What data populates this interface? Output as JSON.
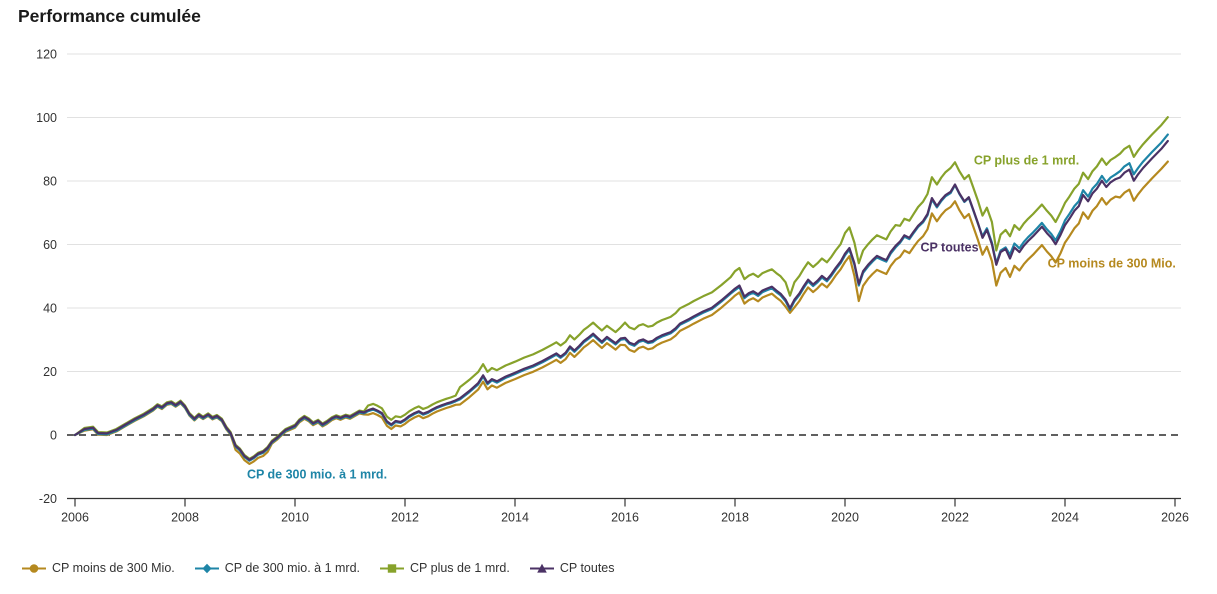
{
  "title": "Performance cumulée",
  "axis_color": "#333333",
  "grid_color": "#e1e1e1",
  "zero_line_color": "#000000",
  "chart_data": {
    "type": "line",
    "title": "Performance cumulée",
    "xlabel": "",
    "ylabel": "",
    "xlim": [
      2006,
      2026
    ],
    "ylim": [
      -20,
      120
    ],
    "xticks": [
      2006,
      2008,
      2010,
      2012,
      2014,
      2016,
      2018,
      2020,
      2022,
      2024,
      2026
    ],
    "yticks": [
      -20,
      0,
      20,
      40,
      60,
      80,
      100,
      120
    ],
    "grid": true,
    "zero_line": "dashed",
    "legend_position": "bottom",
    "x": [
      2006,
      2006.17,
      2006.33,
      2006.42,
      2006.58,
      2006.75,
      2006.92,
      2007.08,
      2007.25,
      2007.42,
      2007.5,
      2007.58,
      2007.67,
      2007.75,
      2007.83,
      2007.92,
      2008,
      2008.08,
      2008.17,
      2008.25,
      2008.33,
      2008.42,
      2008.5,
      2008.58,
      2008.67,
      2008.75,
      2008.83,
      2008.92,
      2009,
      2009.08,
      2009.17,
      2009.25,
      2009.33,
      2009.42,
      2009.5,
      2009.58,
      2009.67,
      2009.75,
      2009.83,
      2009.92,
      2010,
      2010.08,
      2010.17,
      2010.25,
      2010.33,
      2010.42,
      2010.5,
      2010.58,
      2010.67,
      2010.75,
      2010.83,
      2010.92,
      2011,
      2011.08,
      2011.17,
      2011.25,
      2011.33,
      2011.42,
      2011.5,
      2011.58,
      2011.67,
      2011.75,
      2011.83,
      2011.92,
      2012,
      2012.08,
      2012.17,
      2012.25,
      2012.33,
      2012.42,
      2012.5,
      2012.58,
      2012.67,
      2012.75,
      2012.83,
      2012.92,
      2013,
      2013.17,
      2013.33,
      2013.42,
      2013.5,
      2013.58,
      2013.67,
      2013.83,
      2014,
      2014.17,
      2014.33,
      2014.5,
      2014.67,
      2014.75,
      2014.83,
      2014.92,
      2015,
      2015.08,
      2015.17,
      2015.25,
      2015.33,
      2015.42,
      2015.5,
      2015.58,
      2015.67,
      2015.75,
      2015.83,
      2015.92,
      2016,
      2016.08,
      2016.17,
      2016.25,
      2016.33,
      2016.42,
      2016.5,
      2016.58,
      2016.67,
      2016.75,
      2016.83,
      2016.92,
      2017,
      2017.17,
      2017.25,
      2017.42,
      2017.58,
      2017.75,
      2017.92,
      2018,
      2018.08,
      2018.17,
      2018.25,
      2018.33,
      2018.42,
      2018.5,
      2018.58,
      2018.67,
      2018.75,
      2018.83,
      2018.92,
      2019,
      2019.08,
      2019.17,
      2019.25,
      2019.33,
      2019.42,
      2019.5,
      2019.58,
      2019.67,
      2019.75,
      2019.83,
      2019.92,
      2020,
      2020.08,
      2020.17,
      2020.25,
      2020.33,
      2020.42,
      2020.5,
      2020.58,
      2020.67,
      2020.75,
      2020.83,
      2020.92,
      2021,
      2021.08,
      2021.17,
      2021.25,
      2021.33,
      2021.42,
      2021.5,
      2021.58,
      2021.67,
      2021.75,
      2021.83,
      2021.92,
      2022,
      2022.08,
      2022.17,
      2022.25,
      2022.33,
      2022.42,
      2022.5,
      2022.58,
      2022.67,
      2022.75,
      2022.83,
      2022.92,
      2023,
      2023.08,
      2023.17,
      2023.25,
      2023.33,
      2023.42,
      2023.5,
      2023.58,
      2023.67,
      2023.75,
      2023.83,
      2023.92,
      2024,
      2024.08,
      2024.17,
      2024.25,
      2024.33,
      2024.42,
      2024.5,
      2024.58,
      2024.67,
      2024.75,
      2024.83,
      2024.92,
      2025,
      2025.08,
      2025.17,
      2025.25,
      2025.33,
      2025.42,
      2025.58,
      2025.75,
      2025.87
    ],
    "series": [
      {
        "id": "moins300",
        "name": "CP moins de 300 Mio.",
        "color": "#b5891f",
        "marker": "circle",
        "values": [
          0,
          1.4,
          1.8,
          0.1,
          0,
          1.1,
          2.8,
          4.4,
          5.9,
          7.7,
          8.9,
          8.2,
          9.5,
          9.8,
          8.9,
          10,
          8.5,
          6.1,
          4.6,
          5.9,
          5,
          6,
          4.9,
          5.5,
          4.3,
          1.8,
          0.1,
          -4.7,
          -5.9,
          -7.9,
          -9.1,
          -8.3,
          -7.2,
          -6.6,
          -5.4,
          -2.7,
          -1.5,
          -0.2,
          1,
          1.7,
          2.3,
          4,
          5.1,
          4.3,
          3.1,
          3.9,
          2.7,
          3.5,
          4.7,
          5.3,
          4.8,
          5.5,
          5.1,
          5.9,
          6.8,
          6.5,
          6.4,
          6.9,
          6.3,
          5.5,
          2.9,
          1.9,
          3,
          2.7,
          3.5,
          4.6,
          5.5,
          6.1,
          5.3,
          5.9,
          6.7,
          7.4,
          8,
          8.5,
          8.9,
          9.5,
          9.6,
          11.9,
          14.3,
          16.8,
          14.4,
          15.6,
          14.9,
          16.4,
          17.6,
          18.9,
          19.9,
          21.3,
          22.9,
          23.7,
          22.7,
          23.9,
          25.9,
          24.6,
          26.1,
          27.6,
          28.6,
          29.9,
          28.6,
          27.4,
          28.9,
          27.9,
          26.9,
          28.4,
          28.3,
          26.8,
          26.2,
          27.4,
          27.8,
          27,
          27.3,
          28.3,
          29.1,
          29.6,
          30.1,
          31.3,
          32.8,
          34.3,
          35.1,
          36.6,
          37.8,
          40.1,
          42.6,
          43.9,
          44.9,
          41.4,
          42.5,
          43.1,
          42.1,
          43.3,
          43.9,
          44.5,
          43.3,
          42.3,
          40.4,
          38.5,
          40.2,
          42.2,
          44.5,
          46.5,
          45,
          46.2,
          47.7,
          46.5,
          48.2,
          50.2,
          52.2,
          54.5,
          56.3,
          50.1,
          42.2,
          47,
          49.2,
          50.7,
          52,
          51.3,
          50.7,
          53.2,
          55.2,
          56.1,
          58.1,
          57.3,
          59.3,
          61.1,
          62.6,
          64.8,
          69.8,
          67.3,
          69.3,
          70.8,
          71.8,
          73.6,
          70.8,
          68.3,
          69.6,
          65.8,
          61.3,
          56.8,
          59.3,
          54.8,
          47.1,
          51.1,
          52.6,
          49.8,
          53.3,
          51.8,
          53.8,
          55.3,
          56.8,
          58.3,
          59.8,
          57.8,
          56.3,
          54.3,
          57.3,
          60.6,
          62.6,
          65.1,
          66.6,
          70.1,
          68.1,
          70.6,
          72.1,
          74.6,
          72.6,
          74.1,
          75.1,
          74.8,
          76.3,
          77.3,
          73.8,
          75.8,
          77.8,
          80.8,
          83.8,
          86.1
        ]
      },
      {
        "id": "de300a1",
        "name": "CP de 300 mio. à 1 mrd.",
        "color": "#1e85a7",
        "marker": "diamond",
        "values": [
          0,
          1.6,
          2,
          0.3,
          0.2,
          1.3,
          3,
          4.6,
          6.1,
          7.9,
          9.1,
          8.4,
          9.7,
          10,
          9.1,
          10.2,
          8.7,
          6.3,
          4.8,
          6.1,
          5.2,
          6.2,
          5.1,
          5.7,
          4.5,
          2,
          0.3,
          -3.7,
          -4.9,
          -6.9,
          -8.1,
          -7.3,
          -6.2,
          -5.6,
          -4.4,
          -2.4,
          -1.2,
          0.1,
          1.3,
          2,
          2.6,
          4.3,
          5.4,
          4.6,
          3.4,
          4.2,
          3,
          3.8,
          5,
          5.6,
          5.1,
          5.8,
          5.4,
          6.2,
          7.1,
          6.8,
          7.5,
          8,
          7.4,
          6.6,
          4,
          3,
          4.1,
          3.8,
          4.6,
          5.7,
          6.6,
          7.2,
          6.4,
          7,
          7.8,
          8.5,
          9.1,
          9.6,
          10,
          10.6,
          11.2,
          13.5,
          15.9,
          18.4,
          16,
          17.2,
          16.5,
          18,
          19.2,
          20.5,
          21.5,
          22.9,
          24.5,
          25.3,
          24.3,
          25.5,
          27.5,
          26.2,
          27.7,
          29.2,
          30.2,
          31.5,
          30.2,
          29,
          30.5,
          29.5,
          28.5,
          30,
          30.2,
          28.7,
          28.1,
          29.3,
          29.7,
          28.9,
          29.2,
          30.2,
          31,
          31.5,
          32,
          33.2,
          34.7,
          36.2,
          37,
          38.5,
          39.7,
          42,
          44.5,
          45.6,
          46.6,
          43.1,
          44.2,
          44.8,
          43.8,
          45,
          45.6,
          46.2,
          45,
          44,
          42.1,
          39.4,
          42.1,
          44.1,
          46.4,
          48.4,
          46.9,
          48.1,
          49.6,
          48.4,
          50.1,
          52.1,
          54.1,
          56.6,
          58.4,
          53.6,
          47.1,
          51.1,
          53.1,
          54.6,
          55.9,
          55.2,
          54.6,
          57.1,
          59.1,
          60.5,
          62.5,
          61.7,
          63.7,
          65.5,
          67,
          69.2,
          74.2,
          71.7,
          73.7,
          75.2,
          76.2,
          78.7,
          75.9,
          73.4,
          74.7,
          70.9,
          66.4,
          62.6,
          65.1,
          60.6,
          54.1,
          58.1,
          59.1,
          56.8,
          60.3,
          58.8,
          60.8,
          62.3,
          63.8,
          65.3,
          66.8,
          64.8,
          63.3,
          61.3,
          64.3,
          67.6,
          69.6,
          72.1,
          73.6,
          77.1,
          75.1,
          77.6,
          79.1,
          81.6,
          79.6,
          81.1,
          82.1,
          83.1,
          84.6,
          85.6,
          82.1,
          84.1,
          86.1,
          89.1,
          92.1,
          94.6
        ]
      },
      {
        "id": "plus1mrd",
        "name": "CP plus de 1 mrd.",
        "color": "#87a22b",
        "marker": "square",
        "values": [
          0,
          2.2,
          2.6,
          0.9,
          0.8,
          1.9,
          3.6,
          5.2,
          6.7,
          8.5,
          9.7,
          9,
          10.3,
          10.6,
          9.7,
          10.8,
          9.3,
          6.9,
          5.4,
          6.7,
          5.8,
          6.8,
          5.7,
          6.3,
          5.1,
          2.6,
          0.9,
          -3.1,
          -4.3,
          -6.3,
          -7.5,
          -6.7,
          -5.6,
          -5,
          -3.8,
          -1.8,
          -0.6,
          0.7,
          1.9,
          2.6,
          3.2,
          4.9,
          6,
          5.2,
          4,
          4.8,
          3.6,
          4.4,
          5.6,
          6.2,
          5.7,
          6.4,
          6,
          6.8,
          7.7,
          7.4,
          9.3,
          9.8,
          9.2,
          8.4,
          5.8,
          4.8,
          5.9,
          5.6,
          6.4,
          7.5,
          8.4,
          9,
          8.2,
          8.8,
          9.6,
          10.3,
          10.9,
          11.4,
          11.8,
          12.4,
          15.1,
          17.4,
          19.8,
          22.3,
          19.9,
          21.1,
          20.4,
          21.9,
          23.1,
          24.4,
          25.4,
          26.8,
          28.4,
          29.2,
          28.2,
          29.4,
          31.4,
          30.1,
          31.6,
          33.1,
          34.1,
          35.4,
          34.1,
          32.9,
          34.4,
          33.4,
          32.4,
          33.9,
          35.4,
          33.9,
          33.3,
          34.5,
          34.9,
          34.1,
          34.4,
          35.4,
          36.2,
          36.7,
          37.2,
          38.4,
          39.9,
          41.4,
          42.2,
          43.7,
          44.9,
          47.2,
          49.7,
          51.6,
          52.6,
          49.1,
          50.2,
          50.8,
          49.8,
          51,
          51.6,
          52.2,
          51,
          50,
          48.1,
          43.9,
          48.1,
          50.1,
          52.4,
          54.4,
          52.9,
          54.1,
          55.6,
          54.4,
          56.1,
          58.1,
          60.1,
          63.6,
          65.4,
          60.6,
          54.1,
          58.1,
          60.1,
          61.6,
          62.9,
          62.2,
          61.6,
          64.1,
          66.1,
          65.9,
          68.1,
          67.5,
          69.7,
          71.8,
          73.5,
          75.9,
          81.2,
          78.9,
          81.1,
          82.8,
          84.1,
          85.9,
          83.1,
          80.6,
          81.9,
          78.1,
          73.6,
          69.1,
          71.6,
          67.1,
          58.1,
          63.1,
          64.6,
          62.6,
          66.1,
          64.6,
          66.6,
          68.1,
          69.6,
          71.1,
          72.6,
          70.6,
          69.1,
          67.1,
          70.1,
          73.1,
          75.1,
          77.6,
          79.1,
          82.6,
          80.6,
          83.1,
          84.6,
          87.1,
          85.1,
          86.6,
          87.6,
          88.6,
          90.1,
          91.1,
          87.6,
          89.6,
          91.6,
          94.6,
          97.6,
          100.1
        ]
      },
      {
        "id": "toutes",
        "name": "CP toutes",
        "color": "#4b3265",
        "marker": "triangle",
        "values": [
          0,
          1.9,
          2.3,
          0.6,
          0.5,
          1.6,
          3.3,
          4.9,
          6.4,
          8.2,
          9.4,
          8.7,
          10,
          10.3,
          9.4,
          10.5,
          9,
          6.6,
          5.1,
          6.4,
          5.5,
          6.5,
          5.4,
          6,
          4.8,
          2.3,
          0.6,
          -3.4,
          -4.6,
          -6.6,
          -7.8,
          -7,
          -5.9,
          -5.3,
          -4.1,
          -2.1,
          -0.9,
          0.4,
          1.6,
          2.3,
          2.9,
          4.6,
          5.7,
          4.9,
          3.7,
          4.5,
          3.3,
          4.1,
          5.3,
          5.9,
          5.4,
          6.1,
          5.7,
          6.5,
          7.4,
          7.1,
          7.8,
          8.3,
          7.7,
          6.9,
          4.3,
          3.3,
          4.4,
          4.1,
          4.9,
          6,
          6.9,
          7.5,
          6.7,
          7.3,
          8.1,
          8.8,
          9.4,
          9.9,
          10.3,
          10.9,
          11.6,
          13.9,
          16.3,
          18.8,
          16.4,
          17.6,
          16.9,
          18.4,
          19.6,
          20.9,
          21.9,
          23.3,
          24.9,
          25.7,
          24.7,
          25.9,
          27.9,
          26.6,
          28.1,
          29.6,
          30.6,
          31.9,
          30.6,
          29.4,
          30.9,
          29.9,
          28.9,
          30.4,
          30.6,
          29.1,
          28.5,
          29.7,
          30.1,
          29.3,
          29.6,
          30.6,
          31.4,
          31.9,
          32.4,
          33.6,
          35.1,
          36.6,
          37.4,
          38.9,
          40.1,
          42.4,
          44.9,
          46.1,
          47.1,
          43.6,
          44.7,
          45.3,
          44.3,
          45.5,
          46.1,
          46.7,
          45.5,
          44.5,
          42.6,
          39.9,
          42.6,
          44.6,
          46.9,
          48.9,
          47.4,
          48.6,
          50.1,
          48.9,
          50.6,
          52.6,
          54.6,
          57.1,
          58.9,
          54.1,
          47.6,
          51.6,
          53.6,
          55.1,
          56.4,
          55.7,
          55.1,
          57.6,
          59.6,
          60.9,
          62.9,
          62.1,
          64.1,
          65.9,
          67.4,
          69.6,
          74.6,
          72.1,
          74.1,
          75.6,
          76.6,
          78.9,
          76.1,
          73.6,
          74.9,
          71.1,
          66.6,
          62.1,
          64.6,
          60.1,
          53.6,
          57.6,
          58.6,
          55.6,
          59.1,
          57.6,
          59.6,
          61.1,
          62.6,
          64.1,
          65.6,
          63.6,
          62.1,
          60.1,
          63.1,
          66.1,
          68.1,
          70.6,
          72.1,
          75.6,
          73.6,
          76.1,
          77.6,
          80.1,
          78.1,
          79.6,
          80.6,
          81.1,
          82.6,
          83.6,
          80.1,
          82.1,
          84.1,
          87.1,
          90.1,
          92.6
        ]
      }
    ],
    "annotations": [
      {
        "text": "CP plus de 1 mrd.",
        "series": "plus1mrd",
        "x": 2023.3,
        "y": 86.5
      },
      {
        "text": "CP toutes",
        "series": "toutes",
        "x": 2021.9,
        "y": 59
      },
      {
        "text": "CP moins de 300 Mio.",
        "series": "moins300",
        "x": 2024.85,
        "y": 54
      },
      {
        "text": "CP de 300 mio. à 1 mrd.",
        "series": "de300a1",
        "x": 2010.4,
        "y": -12.5
      }
    ]
  }
}
